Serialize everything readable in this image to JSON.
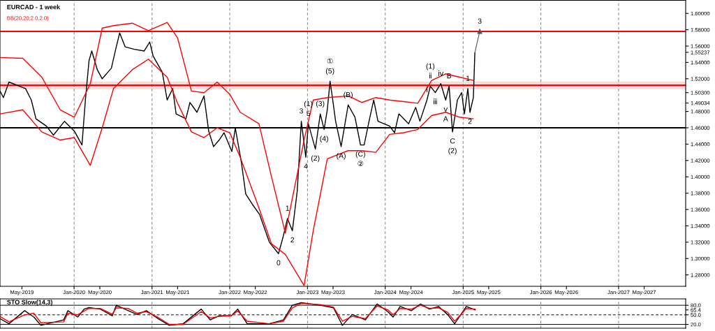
{
  "chart_data": [
    {
      "type": "line",
      "title": "EURCAD - 1 week",
      "subtitle": "BB(20,20,2.0,2.0)",
      "xlim": [
        "2019-01-18",
        "2027-11-12"
      ],
      "ylim": [
        1.266,
        1.616
      ],
      "xticks": [
        {
          "value": "2019-05-01",
          "label": "May-2019"
        },
        {
          "value": "2020-01-01",
          "label": "Jan-2020"
        },
        {
          "value": "2020-05-01",
          "label": "May-2020"
        },
        {
          "value": "2021-01-01",
          "label": "Jan-2021"
        },
        {
          "value": "2021-05-01",
          "label": "May-2021"
        },
        {
          "value": "2022-01-01",
          "label": "Jan-2022"
        },
        {
          "value": "2022-05-01",
          "label": "May-2022"
        },
        {
          "value": "2023-01-01",
          "label": "Jan-2023"
        },
        {
          "value": "2023-05-01",
          "label": "May-2023"
        },
        {
          "value": "2024-01-01",
          "label": "Jan-2024"
        },
        {
          "value": "2024-05-01",
          "label": "May-2024"
        },
        {
          "value": "2025-01-01",
          "label": "Jan-2025"
        },
        {
          "value": "2025-05-01",
          "label": "May-2025"
        },
        {
          "value": "2026-01-01",
          "label": "Jan-2026"
        },
        {
          "value": "2026-05-01",
          "label": "May-2026"
        },
        {
          "value": "2027-01-01",
          "label": "Jan-2027"
        },
        {
          "value": "2027-05-01",
          "label": "May-2027"
        }
      ],
      "yticks": [
        {
          "value": 1.28,
          "label": "1.28000"
        },
        {
          "value": 1.3,
          "label": "1.30000"
        },
        {
          "value": 1.32,
          "label": "1.32000"
        },
        {
          "value": 1.34,
          "label": "1.34000"
        },
        {
          "value": 1.36,
          "label": "1.36000"
        },
        {
          "value": 1.38,
          "label": "1.38000"
        },
        {
          "value": 1.4,
          "label": "1.40000"
        },
        {
          "value": 1.42,
          "label": "1.42000"
        },
        {
          "value": 1.44,
          "label": "1.44000"
        },
        {
          "value": 1.46,
          "label": "1.46000"
        },
        {
          "value": 1.48,
          "label": "1.48000"
        },
        {
          "value": 1.49034,
          "label": "1.49034"
        },
        {
          "value": 1.503,
          "label": "1.50300"
        },
        {
          "value": 1.52,
          "label": "1.52000"
        },
        {
          "value": 1.54,
          "label": "1.54000"
        },
        {
          "value": 1.55237,
          "label": "1.55237"
        },
        {
          "value": 1.56,
          "label": "1.56000"
        },
        {
          "value": 1.58,
          "label": "1.58000"
        },
        {
          "value": 1.6,
          "label": "1.60000"
        }
      ],
      "grid": false,
      "legend": false,
      "series": [
        {
          "type": "line",
          "color": "#000000",
          "x": [
            "2019-01-18",
            "2019-02-03",
            "2019-03-01",
            "2019-05-18",
            "2019-06-14",
            "2019-07-06",
            "2019-08-24",
            "2019-09-26",
            "2019-11-17",
            "2020-01-02",
            "2020-02-07",
            "2020-02-23",
            "2020-03-11",
            "2020-03-24",
            "2020-04-19",
            "2020-05-12",
            "2020-06-24",
            "2020-07-17",
            "2020-08-02",
            "2020-08-28",
            "2020-10-10",
            "2020-11-25",
            "2020-12-21",
            "2021-01-06",
            "2021-02-18",
            "2021-03-13",
            "2021-04-08",
            "2021-04-24",
            "2021-06-09",
            "2021-06-28",
            "2021-07-31",
            "2021-09-02",
            "2021-09-24",
            "2021-10-17",
            "2021-11-12",
            "2021-12-05",
            "2022-01-11",
            "2022-01-27",
            "2022-02-25",
            "2022-03-17",
            "2022-04-18",
            "2022-05-21",
            "2022-07-06",
            "2022-08-18",
            "2022-09-10",
            "2022-09-29",
            "2022-10-22",
            "2022-11-14",
            "2022-12-03",
            "2022-12-24",
            "2023-01-05",
            "2023-02-07",
            "2023-03-02",
            "2023-03-20",
            "2023-04-04",
            "2023-04-17",
            "2023-04-27",
            "2023-05-13",
            "2023-06-08",
            "2023-07-11",
            "2023-08-12",
            "2023-09-07",
            "2023-09-24",
            "2023-10-17",
            "2023-11-08",
            "2023-11-28",
            "2024-01-22",
            "2024-02-14",
            "2024-03-05",
            "2024-04-20",
            "2024-05-23",
            "2024-06-12",
            "2024-07-15",
            "2024-07-31",
            "2024-08-23",
            "2024-09-18",
            "2024-10-11",
            "2024-10-27",
            "2024-11-12",
            "2024-12-05",
            "2024-12-25",
            "2025-01-07",
            "2025-01-23",
            "2025-02-02",
            "2025-02-18",
            "2025-02-25"
          ],
          "values": [
            1.505,
            1.497,
            1.516,
            1.508,
            1.494,
            1.471,
            1.462,
            1.451,
            1.468,
            1.456,
            1.439,
            1.494,
            1.542,
            1.554,
            1.531,
            1.52,
            1.533,
            1.559,
            1.576,
            1.559,
            1.556,
            1.554,
            1.565,
            1.548,
            1.528,
            1.494,
            1.508,
            1.477,
            1.471,
            1.491,
            1.479,
            1.499,
            1.456,
            1.437,
            1.445,
            1.454,
            1.431,
            1.46,
            1.417,
            1.379,
            1.366,
            1.354,
            1.32,
            1.306,
            1.328,
            1.349,
            1.334,
            1.383,
            1.468,
            1.424,
            1.465,
            1.434,
            1.477,
            1.458,
            1.482,
            1.517,
            1.499,
            1.468,
            1.437,
            1.488,
            1.473,
            1.439,
            1.439,
            1.468,
            1.494,
            1.468,
            1.462,
            1.454,
            1.477,
            1.465,
            1.485,
            1.468,
            1.494,
            1.511,
            1.503,
            1.514,
            1.494,
            1.511,
            1.455,
            1.494,
            1.503,
            1.477,
            1.508,
            1.479,
            1.497,
            1.552
          ]
        },
        {
          "type": "line",
          "color": "#555555",
          "marker": "triangle",
          "x": [
            "2025-02-25",
            "2025-03-20"
          ],
          "values": [
            1.552,
            1.578
          ]
        },
        {
          "type": "line",
          "color": "#ff0000",
          "x": [
            "2019-01-18",
            "2019-05-05",
            "2019-08-02",
            "2019-10-28",
            "2020-01-02",
            "2020-03-17",
            "2020-05-12",
            "2020-07-04",
            "2020-09-30",
            "2020-12-15",
            "2021-03-13",
            "2021-05-01",
            "2021-07-05",
            "2021-09-02",
            "2021-11-03",
            "2022-01-01",
            "2022-02-19",
            "2022-05-18",
            "2022-07-16",
            "2022-09-19",
            "2022-12-16",
            "2023-01-28",
            "2023-04-04",
            "2023-07-11",
            "2023-09-13",
            "2023-11-18",
            "2024-01-22",
            "2024-03-28",
            "2024-06-02",
            "2024-08-06",
            "2024-10-11",
            "2024-12-15",
            "2025-02-18"
          ],
          "values": [
            1.546,
            1.545,
            1.522,
            1.482,
            1.473,
            1.514,
            1.582,
            1.585,
            1.588,
            1.579,
            1.589,
            1.57,
            1.505,
            1.503,
            1.516,
            1.501,
            1.479,
            1.465,
            1.4,
            1.331,
            1.445,
            1.494,
            1.497,
            1.499,
            1.491,
            1.497,
            1.494,
            1.492,
            1.49,
            1.518,
            1.526,
            1.522,
            1.518
          ]
        },
        {
          "type": "line",
          "color": "#ff0000",
          "x": [
            "2019-01-18",
            "2019-05-05",
            "2019-08-02",
            "2019-10-28",
            "2020-01-02",
            "2020-03-17",
            "2020-05-12",
            "2020-07-04",
            "2020-09-30",
            "2020-12-15",
            "2021-03-13",
            "2021-05-01",
            "2021-07-05",
            "2021-09-02",
            "2021-11-03",
            "2022-01-01",
            "2022-02-19",
            "2022-05-18",
            "2022-07-16",
            "2022-09-19",
            "2022-12-16",
            "2023-01-28",
            "2023-04-04",
            "2023-07-11",
            "2023-09-13",
            "2023-11-18",
            "2024-01-22",
            "2024-03-28",
            "2024-06-02",
            "2024-08-06",
            "2024-10-11",
            "2024-12-15",
            "2025-02-18"
          ],
          "values": [
            1.477,
            1.482,
            1.455,
            1.445,
            1.448,
            1.414,
            1.46,
            1.508,
            1.531,
            1.544,
            1.522,
            1.49,
            1.455,
            1.448,
            1.46,
            1.454,
            1.424,
            1.362,
            1.318,
            1.305,
            1.267,
            1.334,
            1.422,
            1.432,
            1.432,
            1.43,
            1.452,
            1.454,
            1.458,
            1.475,
            1.479,
            1.473,
            1.471
          ]
        }
      ],
      "ref_lines": [
        {
          "axis": "x",
          "value": "2020-01-01",
          "color": "#808080",
          "line_style": "dashed"
        },
        {
          "axis": "x",
          "value": "2021-01-01",
          "color": "#808080",
          "line_style": "dashed"
        },
        {
          "axis": "x",
          "value": "2022-01-01",
          "color": "#808080",
          "line_style": "dashed"
        },
        {
          "axis": "x",
          "value": "2023-01-01",
          "color": "#808080",
          "line_style": "dashed"
        },
        {
          "axis": "x",
          "value": "2024-01-01",
          "color": "#808080",
          "line_style": "dashed"
        },
        {
          "axis": "x",
          "value": "2025-01-01",
          "color": "#808080",
          "line_style": "dashed"
        },
        {
          "axis": "x",
          "value": "2026-01-01",
          "color": "#808080",
          "line_style": "dashed"
        },
        {
          "axis": "x",
          "value": "2027-01-01",
          "color": "#808080",
          "line_style": "dashed"
        },
        {
          "axis": "y",
          "value": 1.578,
          "color": "#ff0000",
          "line_style": "solid"
        },
        {
          "axis": "y",
          "value": 1.512,
          "color": "#ff0000",
          "line_style": "solid"
        },
        {
          "axis": "y",
          "value": 1.46,
          "color": "#000000",
          "line_style": "solid"
        }
      ],
      "bands": [
        {
          "axis": "y",
          "from": 1.508,
          "to": 1.516,
          "color": "#ff0000"
        }
      ],
      "annotations": [
        {
          "text": "0",
          "x": "2022-08-18",
          "y": 1.306
        },
        {
          "text": "1",
          "x": "2022-09-29",
          "y": 1.349
        },
        {
          "text": "2",
          "x": "2022-10-22",
          "y": 1.334
        },
        {
          "text": "3",
          "x": "2022-12-03",
          "y": 1.468
        },
        {
          "text": "4",
          "x": "2022-12-24",
          "y": 1.424
        },
        {
          "text": "5",
          "x": "2023-01-05",
          "y": 1.465
        },
        {
          "text": "(1)",
          "x": "2023-01-05",
          "y": 1.465
        },
        {
          "text": "(2)",
          "x": "2023-02-07",
          "y": 1.434
        },
        {
          "text": "(3)",
          "x": "2023-03-02",
          "y": 1.477
        },
        {
          "text": "(4)",
          "x": "2023-03-20",
          "y": 1.458
        },
        {
          "text": "(5)",
          "x": "2023-04-17",
          "y": 1.517
        },
        {
          "text": "①",
          "x": "2023-04-17",
          "y": 1.517
        },
        {
          "text": "(A)",
          "x": "2023-06-08",
          "y": 1.437
        },
        {
          "text": "(B)",
          "x": "2023-07-11",
          "y": 1.488
        },
        {
          "text": "(C)",
          "x": "2023-09-07",
          "y": 1.439
        },
        {
          "text": "②",
          "x": "2023-09-07",
          "y": 1.439
        },
        {
          "text": "ⅱ",
          "x": "2024-07-31",
          "y": 1.511
        },
        {
          "text": "(1)",
          "x": "2024-07-31",
          "y": 1.511
        },
        {
          "text": "ⅳ",
          "x": "2024-09-18",
          "y": 1.514
        },
        {
          "text": "B",
          "x": "2024-10-27",
          "y": 1.511
        },
        {
          "text": "ⅰ",
          "x": "2024-07-15",
          "y": 1.494
        },
        {
          "text": "ⅲ",
          "x": "2024-08-23",
          "y": 1.503
        },
        {
          "text": "ⅴ",
          "x": "2024-10-11",
          "y": 1.494
        },
        {
          "text": "A",
          "x": "2024-10-11",
          "y": 1.494
        },
        {
          "text": "C",
          "x": "2024-11-12",
          "y": 1.455
        },
        {
          "text": "(2)",
          "x": "2024-11-12",
          "y": 1.455
        },
        {
          "text": "1",
          "x": "2025-01-23",
          "y": 1.508
        },
        {
          "text": "2",
          "x": "2025-02-02",
          "y": 1.479
        },
        {
          "text": "3",
          "x": "2025-03-20",
          "y": 1.578
        }
      ]
    },
    {
      "type": "line",
      "title": "STO Slow(14,3)",
      "xlim": [
        "2019-01-18",
        "2027-11-12"
      ],
      "ylim": [
        8,
        100
      ],
      "tick_labels": "y",
      "grid": false,
      "yticks": [
        {
          "value": 20,
          "label": "20.0"
        },
        {
          "value": 50,
          "label": "50.0"
        },
        {
          "value": 65.4,
          "label": "65.4"
        },
        {
          "value": 80,
          "label": "80.0"
        }
      ],
      "x": [
        "2019-01-18",
        "2019-03-01",
        "2019-05-14",
        "2019-06-26",
        "2019-07-29",
        "2019-11-13",
        "2019-12-03",
        "2020-01-18",
        "2020-02-17",
        "2020-03-11",
        "2020-05-03",
        "2020-06-28",
        "2020-07-17",
        "2020-09-11",
        "2020-10-23",
        "2020-12-05",
        "2021-01-30",
        "2021-03-23",
        "2021-05-27",
        "2021-08-20",
        "2021-10-01",
        "2021-11-12",
        "2022-01-08",
        "2022-02-07",
        "2022-03-24",
        "2022-07-06",
        "2022-09-10",
        "2022-10-22",
        "2022-12-03",
        "2023-03-02",
        "2023-05-03",
        "2023-06-14",
        "2023-07-30",
        "2023-09-30",
        "2023-11-24",
        "2024-01-15",
        "2024-02-07",
        "2024-03-11",
        "2024-05-03",
        "2024-06-15",
        "2024-07-27",
        "2024-09-08",
        "2024-10-20",
        "2024-11-22",
        "2025-01-16",
        "2025-02-27"
      ],
      "series": [
        {
          "color": "#000000",
          "values": [
            38,
            22,
            63,
            43,
            17,
            34,
            63,
            43,
            68,
            73,
            68,
            47,
            80,
            63,
            51,
            63,
            38,
            17,
            22,
            68,
            34,
            47,
            47,
            68,
            22,
            22,
            34,
            80,
            88,
            80,
            72,
            17,
            51,
            34,
            84,
            59,
            43,
            76,
            63,
            84,
            68,
            76,
            51,
            22,
            76,
            65.4
          ]
        },
        {
          "color": "#ff0000",
          "values": [
            45,
            28,
            50,
            55,
            25,
            28,
            55,
            50,
            62,
            70,
            70,
            52,
            72,
            70,
            55,
            60,
            42,
            20,
            20,
            60,
            40,
            45,
            47,
            62,
            30,
            22,
            30,
            72,
            86,
            82,
            74,
            30,
            45,
            38,
            78,
            65,
            50,
            70,
            68,
            80,
            70,
            72,
            58,
            30,
            70,
            68
          ]
        }
      ],
      "ref_lines": [
        {
          "axis": "y",
          "value": 80,
          "color": "#000000",
          "line_style": "solid"
        },
        {
          "axis": "y",
          "value": 50,
          "color": "#000000",
          "line_style": "dashed"
        },
        {
          "axis": "y",
          "value": 20,
          "color": "#000000",
          "line_style": "solid"
        },
        {
          "axis": "x",
          "value": "2020-01-01",
          "color": "#808080",
          "line_style": "dashed"
        },
        {
          "axis": "x",
          "value": "2021-01-01",
          "color": "#808080",
          "line_style": "dashed"
        },
        {
          "axis": "x",
          "value": "2022-01-01",
          "color": "#808080",
          "line_style": "dashed"
        },
        {
          "axis": "x",
          "value": "2023-01-01",
          "color": "#808080",
          "line_style": "dashed"
        },
        {
          "axis": "x",
          "value": "2024-01-01",
          "color": "#808080",
          "line_style": "dashed"
        },
        {
          "axis": "x",
          "value": "2025-01-01",
          "color": "#808080",
          "line_style": "dashed"
        },
        {
          "axis": "x",
          "value": "2026-01-01",
          "color": "#808080",
          "line_style": "dashed"
        },
        {
          "axis": "x",
          "value": "2027-01-01",
          "color": "#808080",
          "line_style": "dashed"
        }
      ]
    }
  ]
}
